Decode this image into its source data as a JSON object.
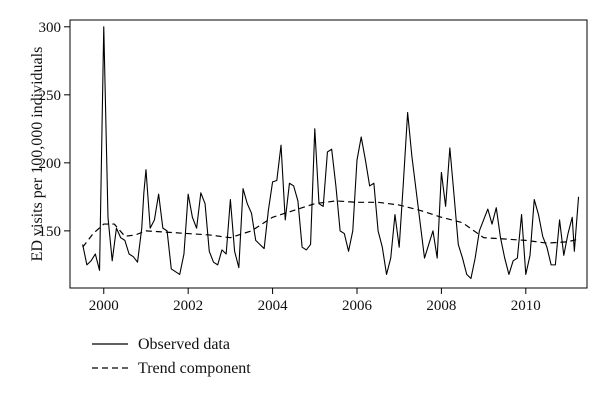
{
  "chart_data": {
    "type": "line",
    "title": "",
    "xlabel": "",
    "ylabel": "ED visits per 100,000 individuals",
    "xlim": [
      1999.2,
      2011.45
    ],
    "ylim": [
      108,
      305
    ],
    "x_ticks": [
      2000,
      2002,
      2004,
      2006,
      2008,
      2010
    ],
    "x_tick_labels": [
      "2000",
      "2002",
      "2004",
      "2006",
      "2008",
      "2010"
    ],
    "y_ticks": [
      150,
      200,
      250,
      300
    ],
    "y_tick_labels": [
      "150",
      "200",
      "250",
      "300"
    ],
    "grid": false,
    "legend_position": "bottom-left",
    "series": [
      {
        "name": "Observed data",
        "style": "solid",
        "points": [
          [
            1999.5,
            140
          ],
          [
            1999.6,
            125
          ],
          [
            1999.7,
            128
          ],
          [
            1999.8,
            133
          ],
          [
            1999.9,
            121
          ],
          [
            2000.0,
            300
          ],
          [
            2000.1,
            160
          ],
          [
            2000.2,
            128
          ],
          [
            2000.3,
            152
          ],
          [
            2000.4,
            145
          ],
          [
            2000.5,
            143
          ],
          [
            2000.6,
            133
          ],
          [
            2000.7,
            131
          ],
          [
            2000.8,
            127
          ],
          [
            2000.9,
            152
          ],
          [
            2000.95,
            178
          ],
          [
            2001.0,
            195
          ],
          [
            2001.1,
            152
          ],
          [
            2001.2,
            158
          ],
          [
            2001.3,
            177
          ],
          [
            2001.4,
            152
          ],
          [
            2001.5,
            150
          ],
          [
            2001.6,
            122
          ],
          [
            2001.7,
            120
          ],
          [
            2001.8,
            118
          ],
          [
            2001.9,
            133
          ],
          [
            2002.0,
            177
          ],
          [
            2002.1,
            160
          ],
          [
            2002.2,
            152
          ],
          [
            2002.3,
            178
          ],
          [
            2002.4,
            170
          ],
          [
            2002.5,
            135
          ],
          [
            2002.6,
            127
          ],
          [
            2002.7,
            125
          ],
          [
            2002.8,
            136
          ],
          [
            2002.9,
            133
          ],
          [
            2003.0,
            173
          ],
          [
            2003.1,
            135
          ],
          [
            2003.2,
            123
          ],
          [
            2003.3,
            181
          ],
          [
            2003.4,
            170
          ],
          [
            2003.5,
            163
          ],
          [
            2003.6,
            143
          ],
          [
            2003.7,
            140
          ],
          [
            2003.8,
            137
          ],
          [
            2003.9,
            165
          ],
          [
            2004.0,
            186
          ],
          [
            2004.1,
            187
          ],
          [
            2004.2,
            213
          ],
          [
            2004.3,
            158
          ],
          [
            2004.4,
            185
          ],
          [
            2004.5,
            183
          ],
          [
            2004.6,
            172
          ],
          [
            2004.7,
            138
          ],
          [
            2004.8,
            136
          ],
          [
            2004.9,
            140
          ],
          [
            2005.0,
            225
          ],
          [
            2005.1,
            170
          ],
          [
            2005.2,
            168
          ],
          [
            2005.3,
            208
          ],
          [
            2005.4,
            210
          ],
          [
            2005.5,
            183
          ],
          [
            2005.6,
            150
          ],
          [
            2005.7,
            148
          ],
          [
            2005.8,
            135
          ],
          [
            2005.9,
            150
          ],
          [
            2006.0,
            202
          ],
          [
            2006.1,
            219
          ],
          [
            2006.2,
            202
          ],
          [
            2006.3,
            183
          ],
          [
            2006.4,
            185
          ],
          [
            2006.5,
            150
          ],
          [
            2006.6,
            138
          ],
          [
            2006.7,
            118
          ],
          [
            2006.8,
            130
          ],
          [
            2006.9,
            162
          ],
          [
            2007.0,
            138
          ],
          [
            2007.1,
            186
          ],
          [
            2007.2,
            237
          ],
          [
            2007.3,
            205
          ],
          [
            2007.4,
            180
          ],
          [
            2007.5,
            155
          ],
          [
            2007.6,
            130
          ],
          [
            2007.7,
            140
          ],
          [
            2007.8,
            150
          ],
          [
            2007.9,
            130
          ],
          [
            2008.0,
            193
          ],
          [
            2008.1,
            168
          ],
          [
            2008.2,
            211
          ],
          [
            2008.3,
            176
          ],
          [
            2008.4,
            140
          ],
          [
            2008.5,
            130
          ],
          [
            2008.6,
            118
          ],
          [
            2008.7,
            115
          ],
          [
            2008.8,
            130
          ],
          [
            2008.9,
            150
          ],
          [
            2009.0,
            158
          ],
          [
            2009.1,
            166
          ],
          [
            2009.2,
            155
          ],
          [
            2009.3,
            167
          ],
          [
            2009.4,
            145
          ],
          [
            2009.5,
            130
          ],
          [
            2009.6,
            118
          ],
          [
            2009.7,
            128
          ],
          [
            2009.8,
            130
          ],
          [
            2009.9,
            162
          ],
          [
            2010.0,
            118
          ],
          [
            2010.1,
            132
          ],
          [
            2010.2,
            173
          ],
          [
            2010.3,
            162
          ],
          [
            2010.4,
            146
          ],
          [
            2010.5,
            138
          ],
          [
            2010.6,
            125
          ],
          [
            2010.7,
            125
          ],
          [
            2010.8,
            158
          ],
          [
            2010.9,
            132
          ],
          [
            2011.0,
            148
          ],
          [
            2011.1,
            160
          ],
          [
            2011.15,
            135
          ],
          [
            2011.25,
            175
          ]
        ]
      },
      {
        "name": "Trend component",
        "style": "dashed",
        "points": [
          [
            1999.5,
            138
          ],
          [
            1999.75,
            148
          ],
          [
            2000.0,
            155
          ],
          [
            2000.25,
            155
          ],
          [
            2000.5,
            146
          ],
          [
            2000.75,
            147
          ],
          [
            2001.0,
            150
          ],
          [
            2001.5,
            149
          ],
          [
            2002.0,
            148
          ],
          [
            2002.5,
            147
          ],
          [
            2003.0,
            145
          ],
          [
            2003.5,
            150
          ],
          [
            2004.0,
            160
          ],
          [
            2004.5,
            165
          ],
          [
            2005.0,
            170
          ],
          [
            2005.5,
            172
          ],
          [
            2006.0,
            171
          ],
          [
            2006.5,
            171
          ],
          [
            2007.0,
            169
          ],
          [
            2007.5,
            165
          ],
          [
            2008.0,
            160
          ],
          [
            2008.5,
            156
          ],
          [
            2009.0,
            145
          ],
          [
            2009.5,
            144
          ],
          [
            2010.0,
            143
          ],
          [
            2010.5,
            141
          ],
          [
            2011.0,
            142
          ],
          [
            2011.25,
            144
          ]
        ]
      }
    ]
  }
}
